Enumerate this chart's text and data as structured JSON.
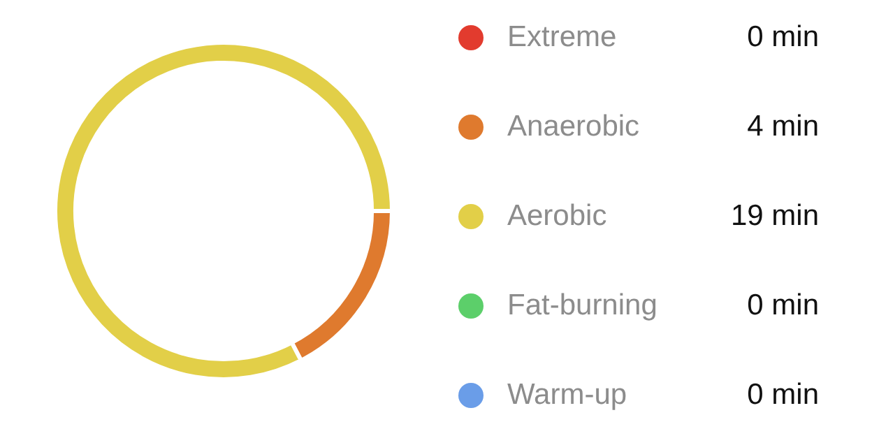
{
  "chart_data": {
    "type": "donut",
    "categories": [
      "Extreme",
      "Anaerobic",
      "Aerobic",
      "Fat-burning",
      "Warm-up"
    ],
    "values": [
      0,
      4,
      19,
      0,
      0
    ],
    "value_labels": [
      "0 min",
      "4 min",
      "19 min",
      "0 min",
      "0 min"
    ],
    "colors": [
      "#e23b2e",
      "#df7a2e",
      "#e2cf48",
      "#5ccf6a",
      "#6a9de8"
    ],
    "legend": "right"
  }
}
